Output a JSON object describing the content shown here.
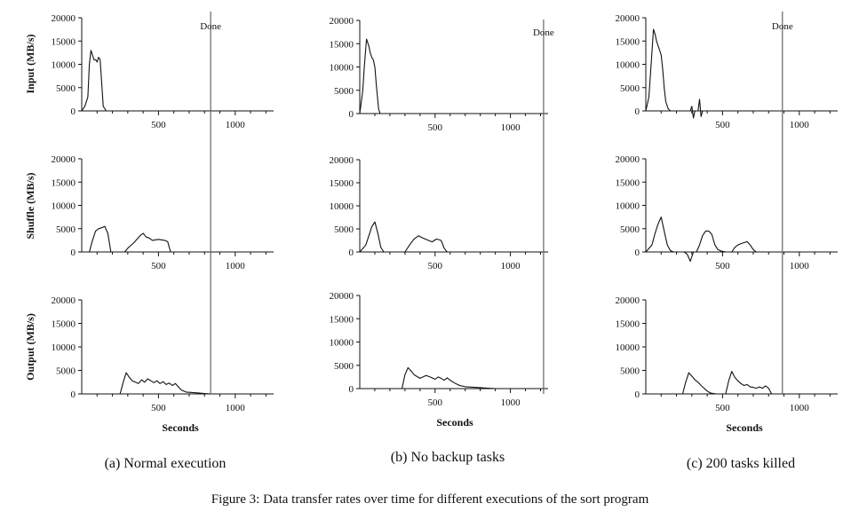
{
  "figure": {
    "caption": "Figure 3: Data transfer rates over time for different executions of the sort program"
  },
  "columns": [
    {
      "caption": "(a) Normal execution",
      "done_label": "Done",
      "done_at": 840
    },
    {
      "caption": "(b) No backup tasks",
      "done_label": "Done",
      "done_at": 1220
    },
    {
      "caption": "(c) 200 tasks killed",
      "done_label": "Done",
      "done_at": 890
    }
  ],
  "row_labels": [
    "Input (MB/s)",
    "Shuffle (MB/s)",
    "Output (MB/s)"
  ],
  "x_axis_label": "Seconds",
  "chart_data": [
    {
      "type": "line",
      "panel": "a-input",
      "ylabel": "Input (MB/s)",
      "xlabel": "",
      "xlim": [
        0,
        1250
      ],
      "ylim": [
        0,
        20000
      ],
      "xticks": [
        500,
        1000
      ],
      "yticks": [
        0,
        5000,
        10000,
        15000,
        20000
      ],
      "series": [
        {
          "x": [
            0,
            20,
            40,
            50,
            60,
            70,
            80,
            90,
            100,
            110,
            120,
            130,
            140,
            160
          ],
          "y": [
            0,
            1000,
            3000,
            10000,
            13000,
            12000,
            11000,
            11000,
            10500,
            11500,
            11000,
            6000,
            1000,
            0
          ]
        }
      ]
    },
    {
      "type": "line",
      "panel": "a-shuffle",
      "ylabel": "Shuffle (MB/s)",
      "xlabel": "",
      "xlim": [
        0,
        1250
      ],
      "ylim": [
        0,
        20000
      ],
      "xticks": [
        500,
        1000
      ],
      "yticks": [
        0,
        5000,
        10000,
        15000,
        20000
      ],
      "series": [
        {
          "x": [
            0,
            50,
            70,
            90,
            110,
            130,
            150,
            170,
            190,
            280,
            300,
            340,
            380,
            400,
            420,
            440,
            460,
            500,
            540,
            560,
            570,
            580
          ],
          "y": [
            0,
            0,
            2500,
            4500,
            5000,
            5200,
            5500,
            4000,
            0,
            0,
            800,
            2000,
            3500,
            4000,
            3200,
            3000,
            2500,
            2700,
            2500,
            2200,
            1000,
            0
          ]
        }
      ]
    },
    {
      "type": "line",
      "panel": "a-output",
      "ylabel": "Output (MB/s)",
      "xlabel": "Seconds",
      "xlim": [
        0,
        1250
      ],
      "ylim": [
        0,
        20000
      ],
      "xticks": [
        500,
        1000
      ],
      "yticks": [
        0,
        5000,
        10000,
        15000,
        20000
      ],
      "series": [
        {
          "x": [
            0,
            250,
            270,
            290,
            310,
            330,
            350,
            370,
            390,
            410,
            430,
            450,
            470,
            490,
            510,
            530,
            550,
            570,
            590,
            610,
            630,
            650,
            680,
            720,
            760,
            800,
            840
          ],
          "y": [
            0,
            0,
            2500,
            4500,
            3500,
            2800,
            2500,
            2200,
            3000,
            2500,
            3200,
            2800,
            2400,
            2800,
            2200,
            2600,
            2000,
            2300,
            1800,
            2200,
            1500,
            800,
            400,
            300,
            200,
            100,
            0
          ]
        }
      ]
    },
    {
      "type": "line",
      "panel": "b-input",
      "ylabel": "",
      "xlabel": "",
      "xlim": [
        0,
        1250
      ],
      "ylim": [
        0,
        20000
      ],
      "xticks": [
        500,
        1000
      ],
      "yticks": [
        0,
        5000,
        10000,
        15000,
        20000
      ],
      "series": [
        {
          "x": [
            0,
            20,
            30,
            45,
            60,
            70,
            80,
            90,
            100,
            110,
            125,
            135
          ],
          "y": [
            0,
            5000,
            10000,
            16000,
            14500,
            13000,
            12000,
            11500,
            10000,
            6000,
            1000,
            0
          ]
        }
      ]
    },
    {
      "type": "line",
      "panel": "b-shuffle",
      "ylabel": "",
      "xlabel": "",
      "xlim": [
        0,
        1250
      ],
      "ylim": [
        0,
        20000
      ],
      "xticks": [
        500,
        1000
      ],
      "yticks": [
        0,
        5000,
        10000,
        15000,
        20000
      ],
      "series": [
        {
          "x": [
            0,
            40,
            60,
            80,
            100,
            120,
            140,
            160,
            300,
            330,
            360,
            390,
            420,
            450,
            480,
            510,
            540,
            560,
            580
          ],
          "y": [
            0,
            1500,
            3500,
            5500,
            6500,
            4000,
            1000,
            0,
            0,
            1500,
            2800,
            3500,
            3000,
            2600,
            2200,
            2800,
            2500,
            800,
            0
          ]
        }
      ]
    },
    {
      "type": "line",
      "panel": "b-output",
      "ylabel": "",
      "xlabel": "Seconds",
      "xlim": [
        0,
        1250
      ],
      "ylim": [
        0,
        20000
      ],
      "xticks": [
        500,
        1000
      ],
      "yticks": [
        0,
        5000,
        10000,
        15000,
        20000
      ],
      "series": [
        {
          "x": [
            0,
            280,
            300,
            320,
            340,
            360,
            380,
            400,
            420,
            440,
            460,
            480,
            500,
            520,
            540,
            560,
            580,
            600,
            630,
            660,
            700,
            750,
            800,
            850,
            900
          ],
          "y": [
            0,
            0,
            3000,
            4500,
            3800,
            3000,
            2600,
            2200,
            2500,
            2800,
            2600,
            2300,
            2000,
            2500,
            2200,
            1800,
            2300,
            1800,
            1200,
            700,
            400,
            300,
            200,
            100,
            0
          ]
        }
      ]
    },
    {
      "type": "line",
      "panel": "c-input",
      "ylabel": "",
      "xlabel": "",
      "xlim": [
        0,
        1250
      ],
      "ylim": [
        0,
        20000
      ],
      "xticks": [
        500,
        1000
      ],
      "yticks": [
        0,
        5000,
        10000,
        15000,
        20000
      ],
      "series": [
        {
          "x": [
            0,
            20,
            35,
            50,
            60,
            70,
            80,
            90,
            100,
            110,
            120,
            130,
            145,
            160,
            290,
            300,
            310,
            320,
            340,
            350,
            360,
            370,
            380
          ],
          "y": [
            0,
            3000,
            10000,
            17500,
            16500,
            15000,
            14000,
            13000,
            12000,
            9000,
            5000,
            2000,
            500,
            0,
            0,
            1000,
            -1500,
            0,
            0,
            2500,
            -1200,
            0,
            0
          ]
        }
      ]
    },
    {
      "type": "line",
      "panel": "c-shuffle",
      "ylabel": "",
      "xlabel": "",
      "xlim": [
        0,
        1250
      ],
      "ylim": [
        0,
        20000
      ],
      "xticks": [
        500,
        1000
      ],
      "yticks": [
        0,
        5000,
        10000,
        15000,
        20000
      ],
      "series": [
        {
          "x": [
            0,
            40,
            60,
            80,
            100,
            120,
            140,
            160,
            180,
            250,
            270,
            290,
            310,
            330,
            350,
            370,
            390,
            410,
            430,
            450,
            470,
            490,
            520,
            560,
            580,
            600,
            620,
            640,
            660,
            680,
            700,
            720
          ],
          "y": [
            0,
            1500,
            4000,
            6000,
            7500,
            4500,
            1500,
            300,
            0,
            0,
            -500,
            -2000,
            0,
            0,
            1500,
            3500,
            4500,
            4500,
            3800,
            1500,
            500,
            200,
            0,
            0,
            1000,
            1500,
            1800,
            2000,
            2200,
            1500,
            500,
            0
          ]
        }
      ]
    },
    {
      "type": "line",
      "panel": "c-output",
      "ylabel": "",
      "xlabel": "Seconds",
      "xlim": [
        0,
        1250
      ],
      "ylim": [
        0,
        20000
      ],
      "xticks": [
        500,
        1000
      ],
      "yticks": [
        0,
        5000,
        10000,
        15000,
        20000
      ],
      "series": [
        {
          "x": [
            0,
            240,
            260,
            280,
            300,
            320,
            340,
            360,
            380,
            400,
            420,
            440,
            460,
            520,
            540,
            560,
            580,
            600,
            620,
            640,
            660,
            680,
            700,
            720,
            740,
            760,
            780,
            800,
            820
          ],
          "y": [
            0,
            0,
            2500,
            4500,
            3800,
            3000,
            2500,
            1800,
            1200,
            600,
            200,
            100,
            0,
            0,
            2800,
            4800,
            3500,
            2800,
            2200,
            1800,
            2000,
            1500,
            1400,
            1200,
            1500,
            1200,
            1700,
            1200,
            0
          ]
        }
      ]
    }
  ]
}
